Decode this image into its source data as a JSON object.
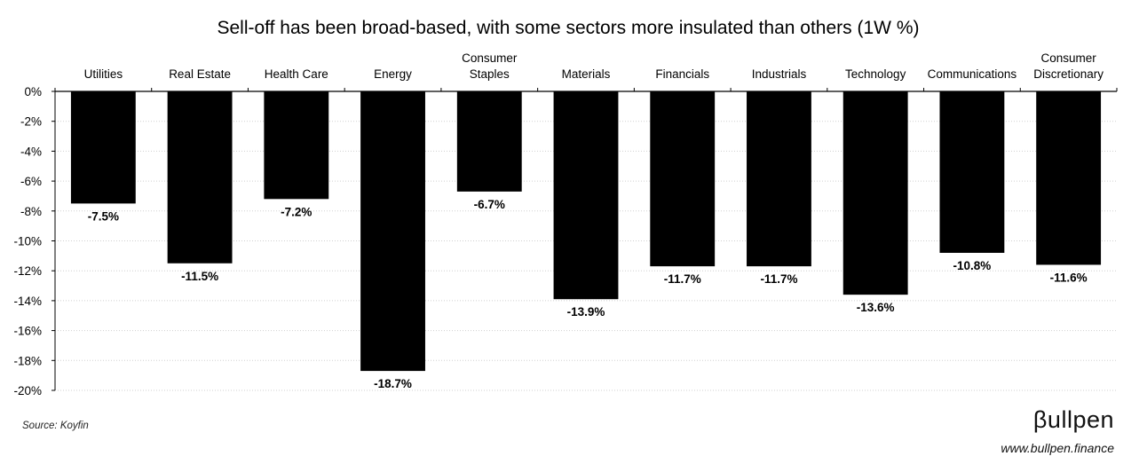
{
  "chart_data": {
    "type": "bar",
    "title": "Sell-off has been broad-based, with some sectors more insulated than others (1W %)",
    "categories": [
      [
        "Utilities"
      ],
      [
        "Real Estate"
      ],
      [
        "Health Care"
      ],
      [
        "Energy"
      ],
      [
        "Consumer",
        "Staples"
      ],
      [
        "Materials"
      ],
      [
        "Financials"
      ],
      [
        "Industrials"
      ],
      [
        "Technology"
      ],
      [
        "Communications"
      ],
      [
        "Consumer",
        "Discretionary"
      ]
    ],
    "values": [
      -7.5,
      -11.5,
      -7.2,
      -18.7,
      -6.7,
      -13.9,
      -11.7,
      -11.7,
      -13.6,
      -10.8,
      -11.6
    ],
    "value_labels": [
      "-7.5%",
      "-11.5%",
      "-7.2%",
      "-18.7%",
      "-6.7%",
      "-13.9%",
      "-11.7%",
      "-11.7%",
      "-13.6%",
      "-10.8%",
      "-11.6%"
    ],
    "yticks": [
      "0%",
      "-2%",
      "-4%",
      "-6%",
      "-8%",
      "-10%",
      "-12%",
      "-14%",
      "-16%",
      "-18%",
      "-20%"
    ],
    "ylim": [
      -20,
      0
    ],
    "grid": true,
    "bar_color": "#000000",
    "category_axis_position": "top"
  },
  "footer": {
    "source": "Source: Koyfin",
    "brand": "βullpen",
    "url": "www.bullpen.finance"
  }
}
